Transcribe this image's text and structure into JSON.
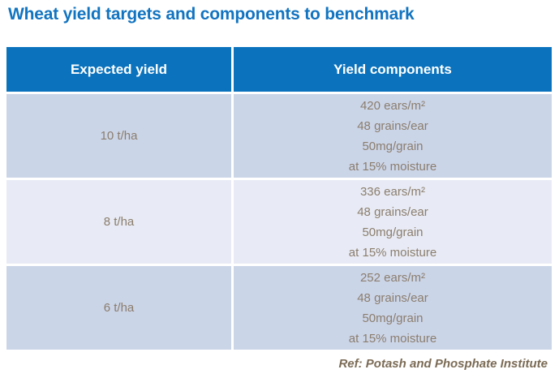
{
  "title": "Wheat yield targets and components to benchmark",
  "table": {
    "headers": [
      "Expected yield",
      "Yield components"
    ],
    "rows": [
      {
        "yield": "10 t/ha",
        "components": [
          "420 ears/m²",
          "48 grains/ear",
          "50mg/grain",
          "at 15% moisture"
        ]
      },
      {
        "yield": "8 t/ha",
        "components": [
          "336 ears/m²",
          "48 grains/ear",
          "50mg/grain",
          "at 15% moisture"
        ]
      },
      {
        "yield": "6 t/ha",
        "components": [
          "252 ears/m²",
          "48 grains/ear",
          "50mg/grain",
          "at 15% moisture"
        ]
      }
    ]
  },
  "footer": {
    "reference": "Ref: Potash and Phosphate Institute"
  },
  "colors": {
    "title_blue": "#1274c0",
    "header_blue": "#0b73bd",
    "row_dark": "#cbd5e8",
    "row_light": "#e8ebf5",
    "cell_text": "#8b7d6d",
    "footer_text": "#7b6b55"
  }
}
